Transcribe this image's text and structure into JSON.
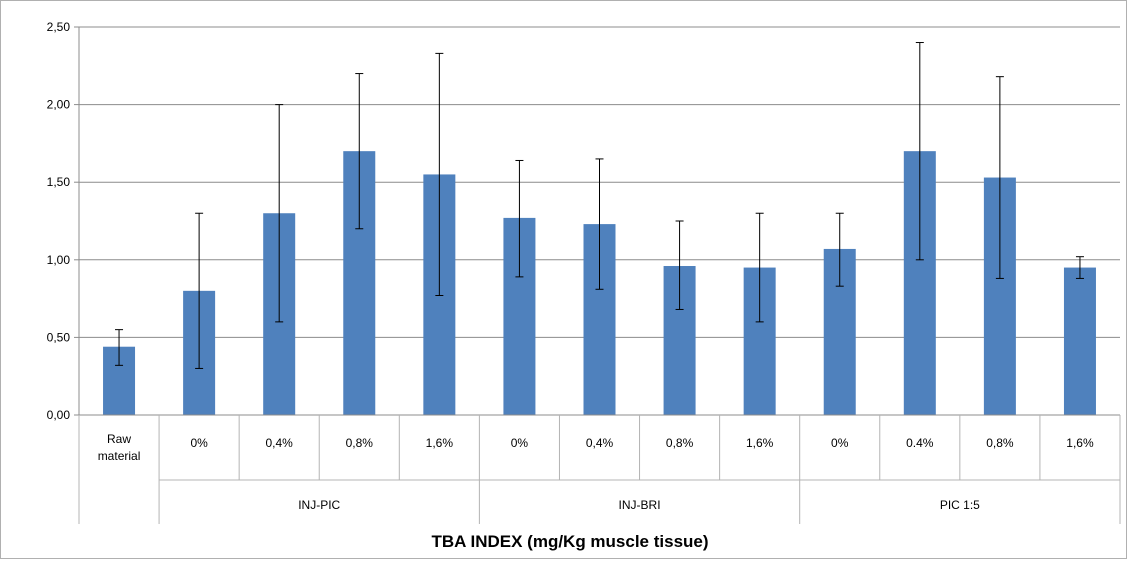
{
  "chart_data": {
    "type": "bar",
    "title": "",
    "xlabel": "TBA INDEX (mg/Kg muscle tissue)",
    "ylabel": "",
    "ylim": [
      0,
      2.5
    ],
    "yticks": [
      "0,00",
      "0,50",
      "1,00",
      "1,50",
      "2,00",
      "2,50"
    ],
    "grid": true,
    "bar_color": "#4f81bd",
    "categories": [
      {
        "label": "Raw material",
        "label_lines": [
          "Raw",
          "material"
        ],
        "group": ""
      },
      {
        "label": "0%",
        "label_lines": [
          "0%"
        ],
        "group": "INJ-PIC"
      },
      {
        "label": "0,4%",
        "label_lines": [
          "0,4%"
        ],
        "group": "INJ-PIC"
      },
      {
        "label": "0,8%",
        "label_lines": [
          "0,8%"
        ],
        "group": "INJ-PIC"
      },
      {
        "label": "1,6%",
        "label_lines": [
          "1,6%"
        ],
        "group": "INJ-PIC"
      },
      {
        "label": "0%",
        "label_lines": [
          "0%"
        ],
        "group": "INJ-BRI"
      },
      {
        "label": "0,4%",
        "label_lines": [
          "0,4%"
        ],
        "group": "INJ-BRI"
      },
      {
        "label": "0,8%",
        "label_lines": [
          "0,8%"
        ],
        "group": "INJ-BRI"
      },
      {
        "label": "1,6%",
        "label_lines": [
          "1,6%"
        ],
        "group": "INJ-BRI"
      },
      {
        "label": "0%",
        "label_lines": [
          "0%"
        ],
        "group": "PIC 1:5"
      },
      {
        "label": "0.4%",
        "label_lines": [
          "0.4%"
        ],
        "group": "PIC 1:5"
      },
      {
        "label": "0,8%",
        "label_lines": [
          "0,8%"
        ],
        "group": "PIC 1:5"
      },
      {
        "label": "1,6%",
        "label_lines": [
          "1,6%"
        ],
        "group": "PIC 1:5"
      }
    ],
    "groups": [
      {
        "label": "INJ-PIC",
        "start": 1,
        "count": 4
      },
      {
        "label": "INJ-BRI",
        "start": 5,
        "count": 4
      },
      {
        "label": "PIC 1:5",
        "start": 9,
        "count": 4
      }
    ],
    "series": [
      {
        "values": [
          0.44,
          0.8,
          1.3,
          1.7,
          1.55,
          1.27,
          1.23,
          0.96,
          0.95,
          1.07,
          1.7,
          1.53,
          0.95
        ],
        "error_low": [
          0.32,
          0.3,
          0.6,
          1.2,
          0.77,
          0.89,
          0.81,
          0.68,
          0.6,
          0.83,
          1.0,
          0.88,
          0.88
        ],
        "error_high": [
          0.55,
          1.3,
          2.0,
          2.2,
          2.33,
          1.64,
          1.65,
          1.25,
          1.3,
          1.3,
          2.4,
          2.18,
          1.02
        ]
      }
    ]
  }
}
